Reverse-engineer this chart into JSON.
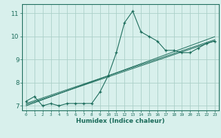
{
  "xlabel": "Humidex (Indice chaleur)",
  "x_data": [
    0,
    1,
    2,
    3,
    4,
    5,
    6,
    7,
    8,
    9,
    10,
    11,
    12,
    13,
    14,
    15,
    16,
    17,
    18,
    19,
    20,
    21,
    22,
    23
  ],
  "y_main": [
    7.2,
    7.4,
    7.0,
    7.1,
    7.0,
    7.1,
    7.1,
    7.1,
    7.1,
    7.6,
    8.3,
    9.3,
    10.6,
    11.1,
    10.2,
    10.0,
    9.8,
    9.4,
    9.4,
    9.3,
    9.3,
    9.5,
    9.7,
    9.8
  ],
  "y_trend1": [
    7.0,
    7.13,
    7.26,
    7.39,
    7.52,
    7.65,
    7.78,
    7.91,
    8.04,
    8.17,
    8.3,
    8.43,
    8.56,
    8.69,
    8.82,
    8.95,
    9.08,
    9.21,
    9.34,
    9.47,
    9.6,
    9.73,
    9.86,
    9.99
  ],
  "y_trend2": [
    7.05,
    7.17,
    7.29,
    7.41,
    7.53,
    7.65,
    7.77,
    7.89,
    8.01,
    8.13,
    8.25,
    8.37,
    8.49,
    8.61,
    8.73,
    8.85,
    8.97,
    9.09,
    9.21,
    9.33,
    9.45,
    9.57,
    9.69,
    9.81
  ],
  "y_trend3": [
    7.1,
    7.22,
    7.34,
    7.46,
    7.58,
    7.7,
    7.82,
    7.94,
    8.06,
    8.18,
    8.3,
    8.42,
    8.54,
    8.66,
    8.78,
    8.9,
    9.02,
    9.14,
    9.26,
    9.38,
    9.5,
    9.62,
    9.74,
    9.86
  ],
  "line_color": "#1a6b5a",
  "bg_color": "#d8f0ec",
  "grid_color": "#aacfc8",
  "ylim": [
    6.8,
    11.4
  ],
  "yticks": [
    7,
    8,
    9,
    10,
    11
  ],
  "xtick_labels": [
    "0",
    "1",
    "2",
    "3",
    "4",
    "5",
    "6",
    "7",
    "8",
    "9",
    "10",
    "11",
    "12",
    "13",
    "14",
    "15",
    "16",
    "17",
    "18",
    "19",
    "20",
    "21",
    "22",
    "23"
  ]
}
